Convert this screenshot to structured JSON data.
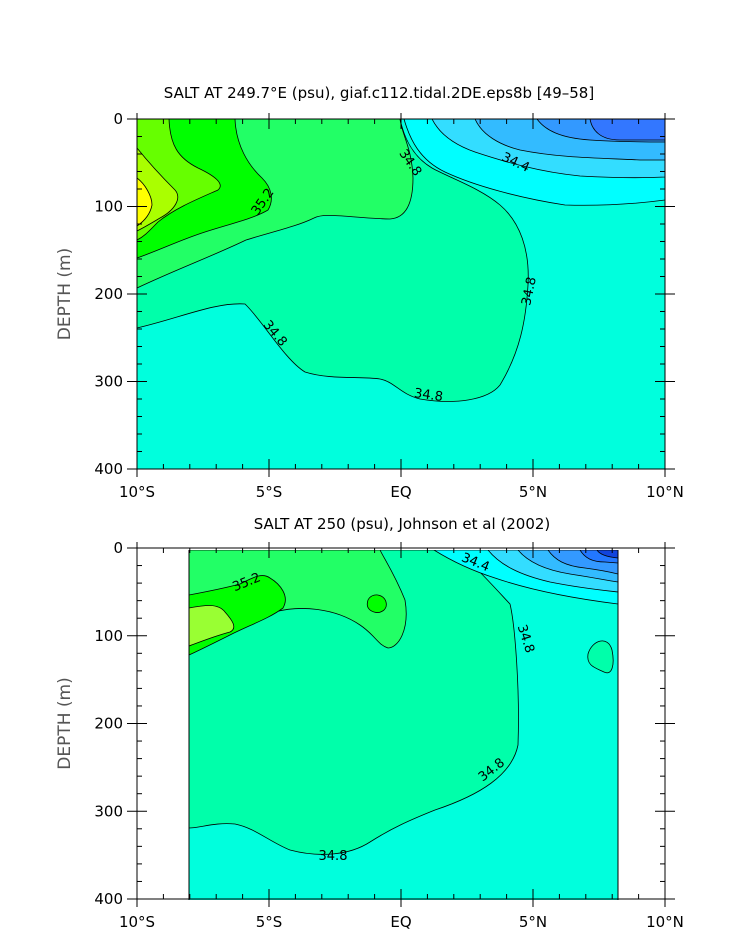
{
  "chart_data": [
    {
      "type": "contour",
      "title": "SALT AT 249.7°E (psu), giaf.c112.tidal.2DE.eps8b [49–58]",
      "xlabel": "",
      "ylabel": "DEPTH (m)",
      "x_ticks": [
        "10°S",
        "5°S",
        "EQ",
        "5°N",
        "10°N"
      ],
      "x_tick_values": [
        -10,
        -5,
        0,
        5,
        10
      ],
      "y_ticks": [
        "0",
        "100",
        "200",
        "300",
        "400"
      ],
      "y_tick_values": [
        0,
        100,
        200,
        300,
        400
      ],
      "xlim": [
        -10,
        10
      ],
      "ylim": [
        400,
        0
      ],
      "colors": {
        "salt_35_4_plus": "#ffff00",
        "salt_35_3": "#99ff00",
        "salt_35_2": "#00ff00",
        "salt_35_1": "#33ff66",
        "salt_34_9": "#00ffaa",
        "salt_34_8": "#00ffdd",
        "salt_34_7": "#00ffff",
        "salt_34_5": "#33ddff",
        "salt_34_4": "#33bbff",
        "salt_34_3": "#3399ff",
        "salt_34_2": "#3366ff"
      },
      "contour_labels": [
        {
          "text": "35.2",
          "x": -4.8,
          "y": 88
        },
        {
          "text": "34.8",
          "x": 0.3,
          "y": 50
        },
        {
          "text": "34.4",
          "x": 4.3,
          "y": 50
        },
        {
          "text": "34.8",
          "x": 5.1,
          "y": 190
        },
        {
          "text": "34.8",
          "x": -5.2,
          "y": 240
        },
        {
          "text": "34.8",
          "x": 1.0,
          "y": 315
        }
      ]
    },
    {
      "type": "contour",
      "title": "SALT AT 250 (psu), Johnson et al (2002)",
      "xlabel": "",
      "ylabel": "DEPTH (m)",
      "x_ticks": [
        "10°S",
        "5°S",
        "EQ",
        "5°N",
        "10°N"
      ],
      "x_tick_values": [
        -10,
        -5,
        0,
        5,
        10
      ],
      "y_ticks": [
        "0",
        "100",
        "200",
        "300",
        "400"
      ],
      "y_tick_values": [
        0,
        100,
        200,
        300,
        400
      ],
      "xlim": [
        -10,
        10
      ],
      "ylim": [
        400,
        0
      ],
      "data_extent_x": [
        -8,
        8.2
      ],
      "data_extent_y": [
        5,
        400
      ],
      "contour_labels": [
        {
          "text": "35.2",
          "x": -5.5,
          "y": 40
        },
        {
          "text": "34.4",
          "x": 2.8,
          "y": 15
        },
        {
          "text": "34.8",
          "x": 4.8,
          "y": 118
        },
        {
          "text": "34.8",
          "x": 3.7,
          "y": 268
        },
        {
          "text": "34.8",
          "x": -2.5,
          "y": 350
        }
      ]
    }
  ]
}
